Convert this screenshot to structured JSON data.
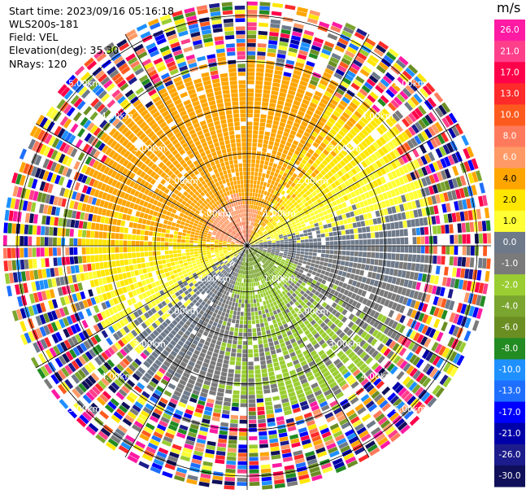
{
  "info": {
    "start_time": "Start time: 2023/09/16 05:16:18",
    "instrument": "WLS200s-181",
    "field": "Field: VEL",
    "elevation": "Elevation(deg): 35.30",
    "nrays": "NRays: 120"
  },
  "chart_data": {
    "type": "heatmap",
    "projection": "polar-ppi",
    "field": "VEL",
    "units": "m/s",
    "elevation_deg": 35.3,
    "n_rays": 120,
    "range_rings_km": [
      1.0,
      2.0,
      3.0,
      4.0,
      5.0
    ],
    "range_ring_labels": [
      "1.00km",
      "2.00km",
      "3.00km",
      "4.00km",
      "5.00km"
    ],
    "azimuth_gridlines_deg": [
      0,
      30,
      60,
      90,
      120,
      150,
      180,
      210,
      240,
      270,
      300,
      330
    ],
    "max_range_km": 5.3,
    "clean_range_km": {
      "north_east": 4.0,
      "south_west": 3.4
    },
    "velocity_pattern": {
      "north_sector_mps": 2.0,
      "near_north_west_mps": 5.5,
      "south_sector_mps": -2.5,
      "near_south_mps": -6.5,
      "east_west_transition_mps": 0.0
    },
    "colorbar": {
      "unit_label": "m/s",
      "tick_labels": [
        "26.0",
        "21.0",
        "17.0",
        "13.0",
        "10.0",
        "8.0",
        "6.0",
        "4.0",
        "2.0",
        "1.0",
        "0.0",
        "-1.0",
        "-2.0",
        "-4.0",
        "-6.0",
        "-8.0",
        "-10.0",
        "-13.0",
        "-17.0",
        "-21.0",
        "-26.0",
        "-30.0"
      ],
      "ticks": [
        26,
        21,
        17,
        13,
        10,
        8,
        6,
        4,
        2,
        1,
        0,
        -1,
        -2,
        -4,
        -6,
        -8,
        -10,
        -13,
        -17,
        -21,
        -26,
        -30
      ],
      "colors": [
        "#ff1aa3",
        "#ff3f8a",
        "#ff004a",
        "#ff2a2a",
        "#ff5a1e",
        "#ff7a5c",
        "#ff9a66",
        "#ffa500",
        "#ffe600",
        "#ffff33",
        "#6e7a8a",
        "#7a7a7a",
        "#9acd32",
        "#7aa52e",
        "#6b8e23",
        "#228b22",
        "#1e90ff",
        "#1e6fff",
        "#0000ff",
        "#0000a8",
        "#1c1c8c",
        "#10105a"
      ]
    }
  }
}
